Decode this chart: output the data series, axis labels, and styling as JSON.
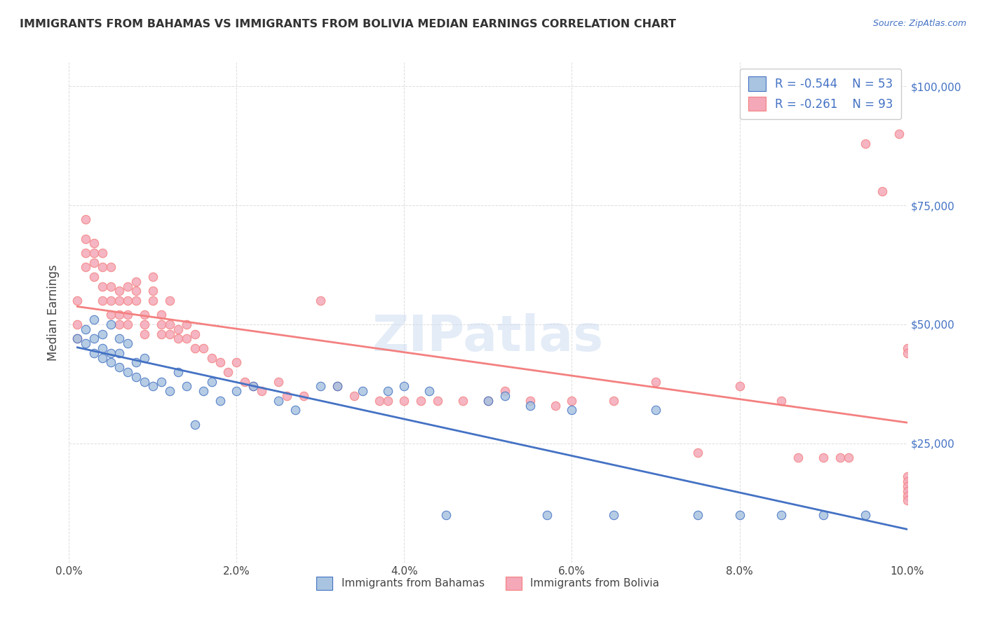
{
  "title": "IMMIGRANTS FROM BAHAMAS VS IMMIGRANTS FROM BOLIVIA MEDIAN EARNINGS CORRELATION CHART",
  "source": "Source: ZipAtlas.com",
  "xlabel": "",
  "ylabel": "Median Earnings",
  "xlim": [
    0.0,
    0.1
  ],
  "ylim": [
    0,
    105000
  ],
  "xtick_labels": [
    "0.0%",
    "2.0%",
    "4.0%",
    "6.0%",
    "8.0%",
    "10.0%"
  ],
  "xtick_vals": [
    0.0,
    0.02,
    0.04,
    0.06,
    0.08,
    0.1
  ],
  "ytick_vals": [
    0,
    25000,
    50000,
    75000,
    100000
  ],
  "ytick_labels": [
    "",
    "$25,000",
    "$50,000",
    "$75,000",
    "$100,000"
  ],
  "bahamas_color": "#a8c4e0",
  "bolivia_color": "#f4a8b8",
  "bahamas_line_color": "#4472c4",
  "bolivia_line_color": "#f48080",
  "legend_R_bahamas": "R = -0.544",
  "legend_N_bahamas": "N = 53",
  "legend_R_bolivia": "R = -0.261",
  "legend_N_bolivia": "N = 93",
  "watermark": "ZIPatlas",
  "background_color": "#ffffff",
  "grid_color": "#dddddd",
  "bahamas_x": [
    0.001,
    0.002,
    0.002,
    0.003,
    0.003,
    0.003,
    0.004,
    0.004,
    0.004,
    0.005,
    0.005,
    0.005,
    0.006,
    0.006,
    0.006,
    0.007,
    0.007,
    0.008,
    0.008,
    0.009,
    0.009,
    0.01,
    0.011,
    0.012,
    0.013,
    0.014,
    0.015,
    0.016,
    0.017,
    0.018,
    0.02,
    0.022,
    0.025,
    0.027,
    0.03,
    0.032,
    0.035,
    0.038,
    0.04,
    0.043,
    0.045,
    0.05,
    0.052,
    0.055,
    0.057,
    0.06,
    0.065,
    0.07,
    0.075,
    0.08,
    0.085,
    0.09,
    0.095
  ],
  "bahamas_y": [
    47000,
    46000,
    49000,
    44000,
    47000,
    51000,
    43000,
    45000,
    48000,
    42000,
    44000,
    50000,
    41000,
    44000,
    47000,
    40000,
    46000,
    39000,
    42000,
    38000,
    43000,
    37000,
    38000,
    36000,
    40000,
    37000,
    29000,
    36000,
    38000,
    34000,
    36000,
    37000,
    34000,
    32000,
    37000,
    37000,
    36000,
    36000,
    37000,
    36000,
    10000,
    34000,
    35000,
    33000,
    10000,
    32000,
    10000,
    32000,
    10000,
    10000,
    10000,
    10000,
    10000
  ],
  "bolivia_x": [
    0.001,
    0.001,
    0.001,
    0.002,
    0.002,
    0.002,
    0.002,
    0.003,
    0.003,
    0.003,
    0.003,
    0.004,
    0.004,
    0.004,
    0.004,
    0.005,
    0.005,
    0.005,
    0.005,
    0.006,
    0.006,
    0.006,
    0.006,
    0.007,
    0.007,
    0.007,
    0.007,
    0.008,
    0.008,
    0.008,
    0.009,
    0.009,
    0.009,
    0.01,
    0.01,
    0.01,
    0.011,
    0.011,
    0.011,
    0.012,
    0.012,
    0.012,
    0.013,
    0.013,
    0.014,
    0.014,
    0.015,
    0.015,
    0.016,
    0.017,
    0.018,
    0.019,
    0.02,
    0.021,
    0.022,
    0.023,
    0.025,
    0.026,
    0.028,
    0.03,
    0.032,
    0.034,
    0.037,
    0.038,
    0.04,
    0.042,
    0.044,
    0.047,
    0.05,
    0.052,
    0.055,
    0.058,
    0.06,
    0.065,
    0.07,
    0.075,
    0.08,
    0.085,
    0.087,
    0.09,
    0.092,
    0.093,
    0.095,
    0.097,
    0.099,
    0.1,
    0.1,
    0.1,
    0.1,
    0.1,
    0.1,
    0.1,
    0.1
  ],
  "bolivia_y": [
    47000,
    50000,
    55000,
    62000,
    65000,
    68000,
    72000,
    60000,
    63000,
    65000,
    67000,
    55000,
    58000,
    62000,
    65000,
    52000,
    55000,
    58000,
    62000,
    50000,
    52000,
    55000,
    57000,
    50000,
    52000,
    55000,
    58000,
    55000,
    57000,
    59000,
    48000,
    50000,
    52000,
    55000,
    57000,
    60000,
    48000,
    50000,
    52000,
    48000,
    50000,
    55000,
    47000,
    49000,
    47000,
    50000,
    45000,
    48000,
    45000,
    43000,
    42000,
    40000,
    42000,
    38000,
    37000,
    36000,
    38000,
    35000,
    35000,
    55000,
    37000,
    35000,
    34000,
    34000,
    34000,
    34000,
    34000,
    34000,
    34000,
    36000,
    34000,
    33000,
    34000,
    34000,
    38000,
    23000,
    37000,
    34000,
    22000,
    22000,
    22000,
    22000,
    88000,
    78000,
    90000,
    45000,
    44000,
    18000,
    17000,
    16000,
    15000,
    14000,
    13000
  ]
}
